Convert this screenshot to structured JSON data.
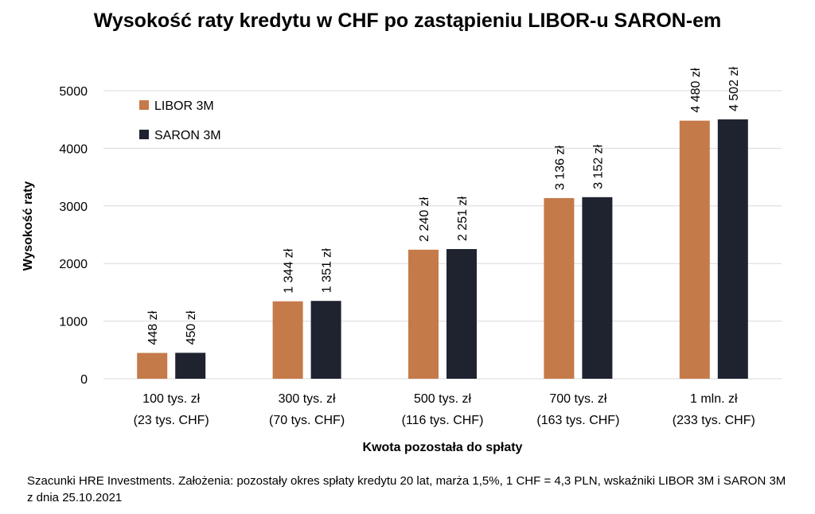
{
  "chart_data": {
    "type": "bar",
    "title": "Wysokość raty kredytu w CHF po zastąpieniu LIBOR-u SARON-em",
    "xlabel": "Kwota pozostała do spłaty",
    "ylabel": "Wysokość raty",
    "ylim": [
      0,
      5000
    ],
    "yticks": [
      0,
      1000,
      2000,
      3000,
      4000,
      5000
    ],
    "grid": true,
    "legend_position": "top-left",
    "categories": [
      [
        "100 tys. zł",
        "(23 tys. CHF)"
      ],
      [
        "300 tys. zł",
        "(70 tys. CHF)"
      ],
      [
        "500 tys. zł",
        "(116 tys. CHF)"
      ],
      [
        "700 tys. zł",
        "(163 tys. CHF)"
      ],
      [
        "1 mln. zł",
        "(233 tys. CHF)"
      ]
    ],
    "series": [
      {
        "name": "LIBOR 3M",
        "color": "#C57A4A",
        "values": [
          448,
          1344,
          2240,
          3136,
          4480
        ],
        "labels": [
          "448 zł",
          "1 344 zł",
          "2 240 zł",
          "3 136 zł",
          "4 480 zł"
        ]
      },
      {
        "name": "SARON 3M",
        "color": "#1F2330",
        "values": [
          450,
          1351,
          2251,
          3152,
          4502
        ],
        "labels": [
          "450 zł",
          "1 351 zł",
          "2 251 zł",
          "3 152 zł",
          "4 502 zł"
        ]
      }
    ]
  },
  "footnote": "Szacunki HRE Investments. Założenia: pozostały okres spłaty kredytu 20 lat, marża 1,5%, 1 CHF = 4,3 PLN, wskaźniki LIBOR 3M i SARON 3M z dnia 25.10.2021"
}
